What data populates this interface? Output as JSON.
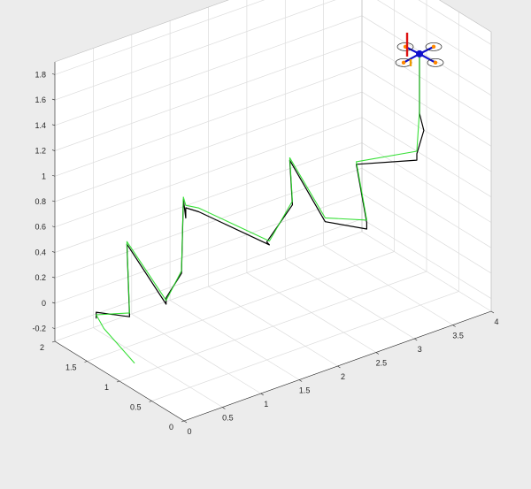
{
  "chart_data": {
    "type": "line3d",
    "title": "",
    "xlabel": "",
    "ylabel": "",
    "zlabel": "",
    "grid": true,
    "xlim": [
      0,
      4
    ],
    "ylim": [
      0,
      2
    ],
    "zlim": [
      -0.3,
      1.9
    ],
    "x_ticks": [
      0,
      0.5,
      1,
      1.5,
      2,
      2.5,
      3,
      3.5,
      4
    ],
    "x_tick_labels": [
      "0",
      "0.5",
      "1",
      "1.5",
      "2",
      "2.5",
      "3",
      "3.5",
      "4"
    ],
    "y_ticks": [
      0,
      0.5,
      1,
      1.5,
      2
    ],
    "y_tick_labels": [
      "0",
      "0.5",
      "1",
      "1.5",
      "2"
    ],
    "z_ticks": [
      -0.2,
      0,
      0.2,
      0.4,
      0.6,
      0.8,
      1,
      1.2,
      1.4,
      1.6,
      1.8
    ],
    "z_tick_labels": [
      "-0.2",
      "0",
      "0.2",
      "0.4",
      "0.6",
      "0.8",
      "1",
      "1.2",
      "1.4",
      "1.6",
      "1.8"
    ],
    "series": [
      {
        "role": "desired",
        "color": "#000000",
        "points": [
          [
            0.05,
            1.42,
            0.05
          ],
          [
            0.05,
            1.42,
            0.1
          ],
          [
            0.35,
            1.26,
            0.05
          ],
          [
            0.45,
            1.42,
            0.55
          ],
          [
            0.65,
            1.05,
            0.15
          ],
          [
            0.65,
            1.05,
            0.2
          ],
          [
            0.85,
            1.05,
            0.35
          ],
          [
            1.0,
            1.2,
            0.85
          ],
          [
            1.2,
            1.4,
            0.6
          ],
          [
            1.2,
            1.4,
            0.68
          ],
          [
            1.05,
            1.02,
            0.8
          ],
          [
            1.7,
            0.7,
            0.5
          ],
          [
            1.75,
            0.8,
            0.48
          ],
          [
            2.0,
            0.7,
            0.75
          ],
          [
            2.15,
            0.92,
            1.0
          ],
          [
            2.3,
            0.55,
            0.6
          ],
          [
            2.8,
            0.5,
            0.45
          ],
          [
            2.8,
            0.5,
            0.5
          ],
          [
            2.9,
            0.78,
            0.85
          ],
          [
            3.2,
            0.2,
            1.0
          ],
          [
            3.2,
            0.2,
            1.05
          ],
          [
            3.4,
            0.33,
            1.15
          ],
          [
            3.42,
            0.42,
            1.25
          ],
          [
            3.42,
            0.42,
            1.7
          ]
        ]
      },
      {
        "role": "actual",
        "color": "#22dd22",
        "points": [
          [
            0.45,
            1.3,
            -0.35
          ],
          [
            0.15,
            1.42,
            -0.05
          ],
          [
            0.05,
            1.42,
            0.08
          ],
          [
            0.35,
            1.26,
            0.08
          ],
          [
            0.45,
            1.42,
            0.57
          ],
          [
            0.65,
            1.05,
            0.18
          ],
          [
            0.85,
            1.05,
            0.37
          ],
          [
            1.0,
            1.2,
            0.87
          ],
          [
            1.2,
            1.4,
            0.7
          ],
          [
            1.05,
            1.02,
            0.83
          ],
          [
            1.7,
            0.7,
            0.53
          ],
          [
            2.0,
            0.7,
            0.78
          ],
          [
            2.15,
            0.92,
            1.02
          ],
          [
            2.3,
            0.55,
            0.63
          ],
          [
            2.8,
            0.5,
            0.52
          ],
          [
            2.9,
            0.78,
            0.87
          ],
          [
            3.2,
            0.2,
            1.07
          ],
          [
            3.42,
            0.42,
            1.27
          ],
          [
            3.42,
            0.42,
            1.72
          ]
        ]
      }
    ],
    "vehicle": {
      "position": [
        3.42,
        0.42,
        1.72
      ],
      "body_color": "#1010cc",
      "axis_colors": [
        "#dd1111",
        "#ee9900",
        "#1010cc"
      ],
      "rotor_marker_color": "#ff8800"
    }
  }
}
